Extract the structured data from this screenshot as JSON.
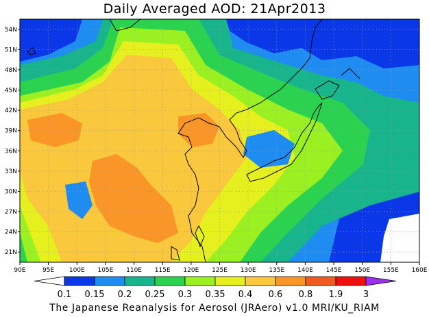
{
  "title": "Daily Averaged AOD: 21Apr2013",
  "credit": "The Japanese Reanalysis for Aerosol (JRAero) v1.0 MRI/KU_RIAM",
  "map": {
    "lon_range": [
      90,
      160
    ],
    "lat_range": [
      19.5,
      55.5
    ],
    "lon_ticks": [
      "90E",
      "95E",
      "100E",
      "105E",
      "110E",
      "115E",
      "120E",
      "125E",
      "130E",
      "135E",
      "140E",
      "145E",
      "150E",
      "155E",
      "160E"
    ],
    "lat_ticks": [
      "54N",
      "51N",
      "48N",
      "45N",
      "42N",
      "39N",
      "36N",
      "33N",
      "30N",
      "27N",
      "24N",
      "21N"
    ],
    "grid": true,
    "grid_style": "dotted"
  },
  "colorbar": {
    "levels": [
      "0.1",
      "0.15",
      "0.2",
      "0.25",
      "0.3",
      "0.35",
      "0.4",
      "0.6",
      "0.8",
      "1.9",
      "3"
    ],
    "colors": [
      "#ffffff",
      "#0a37e8",
      "#1e8cf0",
      "#18b48c",
      "#2ad250",
      "#9af020",
      "#e6f01e",
      "#fac83c",
      "#fa9628",
      "#f05a1e",
      "#f00f0f",
      "#9632f0"
    ]
  },
  "palette": {
    "blue": "#0a37e8",
    "lightblue": "#1e8cf0",
    "teal": "#18b48c",
    "green": "#2ad250",
    "yellowgreen": "#9af020",
    "yellow": "#e6f01e",
    "lightorange": "#fac83c",
    "orange": "#fa9628",
    "white": "#ffffff"
  }
}
